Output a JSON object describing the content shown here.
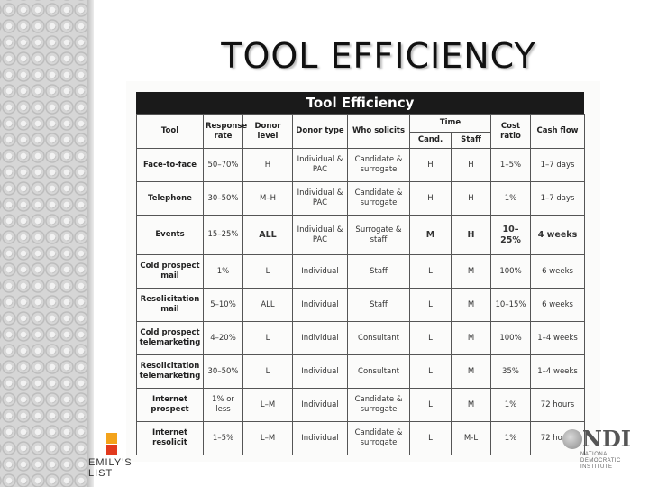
{
  "slide": {
    "title": "TOOL EFFICIENCY"
  },
  "table": {
    "title": "Tool Efficiency",
    "headers": {
      "tool": "Tool",
      "response_rate": "Response rate",
      "donor_level": "Donor level",
      "donor_type": "Donor type",
      "who_solicits": "Who solicits",
      "time": "Time",
      "cand": "Cand.",
      "staff": "Staff",
      "cost_ratio": "Cost ratio",
      "cash_flow": "Cash flow"
    },
    "rows": [
      {
        "tool": "Face-to-face",
        "response": "50–70%",
        "level": "H",
        "type": "Individual & PAC",
        "who": "Candidate & surrogate",
        "cand": "H",
        "staff": "H",
        "cost": "1–5%",
        "cash": "1–7 days"
      },
      {
        "tool": "Telephone",
        "response": "30–50%",
        "level": "M–H",
        "type": "Individual & PAC",
        "who": "Candidate & surrogate",
        "cand": "H",
        "staff": "H",
        "cost": "1%",
        "cash": "1–7 days"
      },
      {
        "tool": "Events",
        "response": "15–25%",
        "level": "ALL",
        "type": "Individual & PAC",
        "who": "Surrogate & staff",
        "cand": "M",
        "staff": "H",
        "cost": "10–25%",
        "cash": "4 weeks"
      },
      {
        "tool": "Cold prospect mail",
        "response": "1%",
        "level": "L",
        "type": "Individual",
        "who": "Staff",
        "cand": "L",
        "staff": "M",
        "cost": "100%",
        "cash": "6 weeks"
      },
      {
        "tool": "Resolicitation mail",
        "response": "5–10%",
        "level": "ALL",
        "type": "Individual",
        "who": "Staff",
        "cand": "L",
        "staff": "M",
        "cost": "10–15%",
        "cash": "6 weeks"
      },
      {
        "tool": "Cold prospect telemarketing",
        "response": "4–20%",
        "level": "L",
        "type": "Individual",
        "who": "Consultant",
        "cand": "L",
        "staff": "M",
        "cost": "100%",
        "cash": "1–4 weeks"
      },
      {
        "tool": "Resolicitation telemarketing",
        "response": "30–50%",
        "level": "L",
        "type": "Individual",
        "who": "Consultant",
        "cand": "L",
        "staff": "M",
        "cost": "35%",
        "cash": "1–4 weeks"
      },
      {
        "tool": "Internet prospect",
        "response": "1% or less",
        "level": "L–M",
        "type": "Individual",
        "who": "Candidate & surrogate",
        "cand": "L",
        "staff": "M",
        "cost": "1%",
        "cash": "72 hours"
      },
      {
        "tool": "Internet resolicit",
        "response": "1–5%",
        "level": "L–M",
        "type": "Individual",
        "who": "Candidate & surrogate",
        "cand": "L",
        "staff": "M-L",
        "cost": "1%",
        "cash": "72 hours"
      }
    ]
  },
  "logos": {
    "emily": "EMILY'S LIST",
    "ndi_mark": "NDI",
    "ndi_sub": "NATIONAL DEMOCRATIC INSTITUTE",
    "colors": {
      "emily_top": "#f3a31b",
      "emily_bottom": "#e23a1e"
    }
  }
}
